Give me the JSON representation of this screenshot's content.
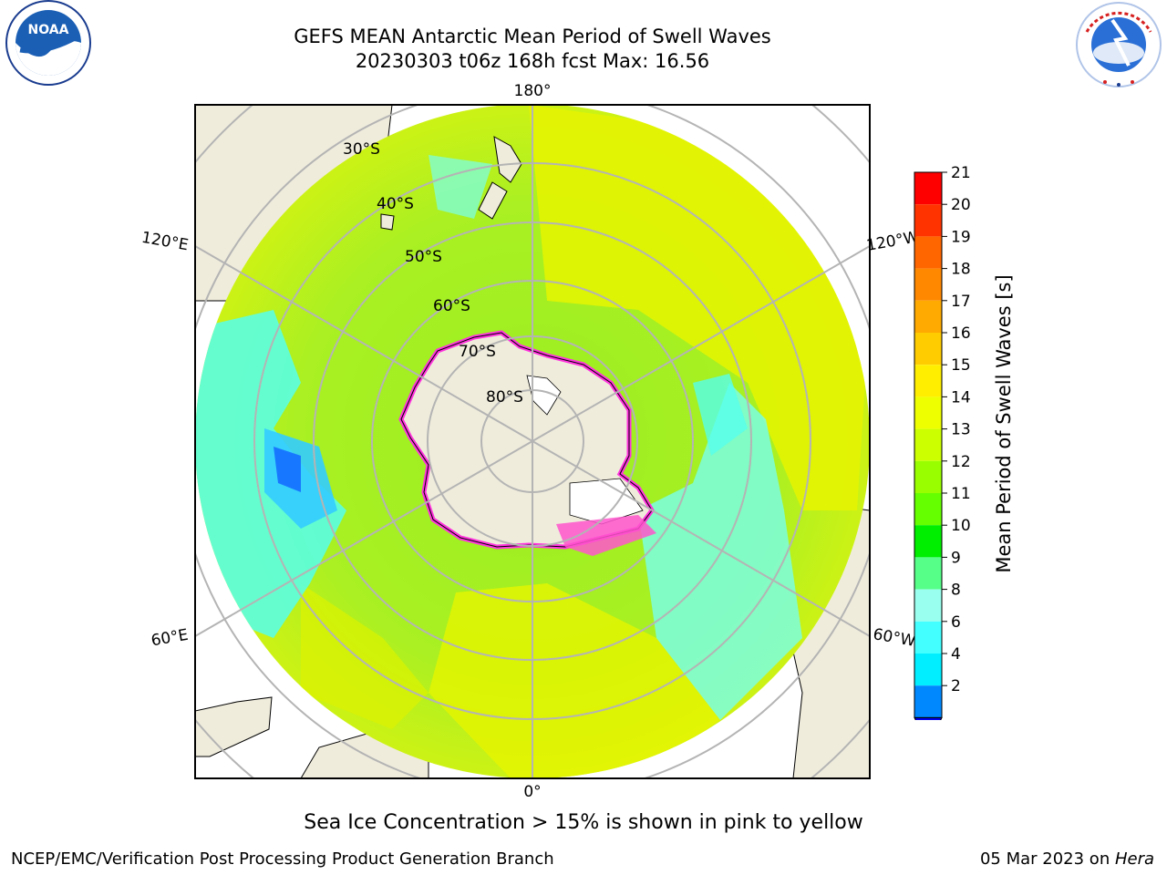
{
  "title": {
    "line1": "GEFS MEAN Antarctic Mean Period of Swell Waves",
    "line2": "20230303 t06z 168h fcst   Max: 16.56"
  },
  "map": {
    "projection": "south-polar-stereographic",
    "longitude_labels": {
      "top": "180°",
      "bottom": "0°",
      "upper_left": "120°E",
      "upper_right": "120°W",
      "lower_left": "60°E",
      "lower_right": "60°W"
    },
    "latitude_labels": [
      "30°S",
      "40°S",
      "50°S",
      "60°S",
      "70°S",
      "80°S"
    ],
    "colors": {
      "land": "#efecdc",
      "ocean_dominant": "#99ee33",
      "ice_edge": "#ff33dd",
      "frame": "#000000",
      "graticule": "#b4b4b4"
    }
  },
  "colorbar": {
    "label": "Mean Period of Swell Waves [s]",
    "ticks": [
      "21",
      "20",
      "19",
      "18",
      "17",
      "16",
      "15",
      "14",
      "13",
      "12",
      "11",
      "10",
      "9",
      "8",
      "6",
      "4",
      "2"
    ],
    "colors_top_to_bottom": [
      "#ff0000",
      "#ff3300",
      "#ff6600",
      "#ff8800",
      "#ffaa00",
      "#ffcc00",
      "#ffee00",
      "#eeff00",
      "#ccff00",
      "#99ff00",
      "#66ff00",
      "#00ee00",
      "#55ff88",
      "#99ffee",
      "#44ffff",
      "#00eeff",
      "#0088ff"
    ],
    "extend_color": "#0000ee"
  },
  "caption": "Sea Ice Concentration > 15% is shown in pink to yellow",
  "footer": {
    "left": "NCEP/EMC/Verification Post Processing Product Generation Branch",
    "right_prefix": "05 Mar 2023 on ",
    "right_machine": "Hera"
  },
  "logos": {
    "left": "NOAA",
    "right": "NATIONAL WEATHER SERVICE"
  }
}
